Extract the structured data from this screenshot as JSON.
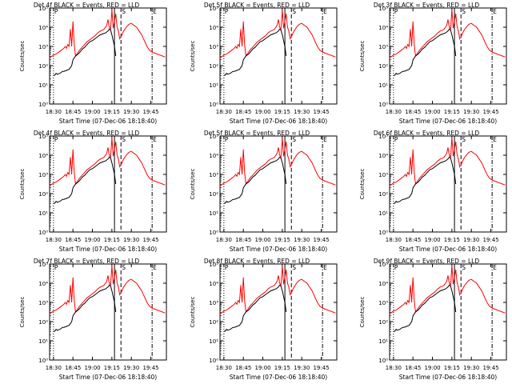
{
  "colors": {
    "background": "#ffffff",
    "axis": "#000000",
    "events": "#000000",
    "lld": "#ff0000"
  },
  "chart_data": [
    {
      "type": "line",
      "detector": "4",
      "title": "Det 4f BLACK = Events, RED = LLD",
      "ylabel": "Counts/sec",
      "xlabel": "Start Time (07-Dec-06 18:18:40)"
    },
    {
      "type": "line",
      "detector": "5",
      "title": "Det 5f BLACK = Events, RED = LLD",
      "ylabel": "Counts/sec",
      "xlabel": "Start Time (07-Dec-06 18:18:40)"
    },
    {
      "type": "line",
      "detector": "3",
      "title": "Det 3f BLACK = Events, RED = LLD",
      "ylabel": "Counts/sec",
      "xlabel": "Start Time (07-Dec-06 18:18:40)"
    },
    {
      "type": "line",
      "detector": "4",
      "title": "Det 4f BLACK = Events, RED = LLD",
      "ylabel": "Counts/sec",
      "xlabel": "Start Time (07-Dec-06 18:18:40)"
    },
    {
      "type": "line",
      "detector": "5",
      "title": "Det 5f BLACK = Events, RED = LLD",
      "ylabel": "Counts/sec",
      "xlabel": "Start Time (07-Dec-06 18:18:40)"
    },
    {
      "type": "line",
      "detector": "6",
      "title": "Det 6f BLACK = Events, RED = LLD",
      "ylabel": "Counts/sec",
      "xlabel": "Start Time (07-Dec-06 18:18:40)"
    },
    {
      "type": "line",
      "detector": "7",
      "title": "Det 7f BLACK = Events, RED = LLD",
      "ylabel": "Counts/sec",
      "xlabel": "Start Time (07-Dec-06 18:18:40)"
    },
    {
      "type": "line",
      "detector": "8",
      "title": "Det 8f BLACK = Events, RED = LLD",
      "ylabel": "Counts/sec",
      "xlabel": "Start Time (07-Dec-06 18:18:40)"
    },
    {
      "type": "line",
      "detector": "9",
      "title": "Det 9f BLACK = Events, RED = LLD",
      "ylabel": "Counts/sec",
      "xlabel": "Start Time (07-Dec-06 18:18:40)"
    }
  ],
  "shared": {
    "xlim_minutes": [
      1107,
      1197
    ],
    "x_ticks": [
      {
        "value": 1110,
        "label": "18:30"
      },
      {
        "value": 1125,
        "label": "18:45"
      },
      {
        "value": 1140,
        "label": "19:00"
      },
      {
        "value": 1155,
        "label": "19:15"
      },
      {
        "value": 1170,
        "label": "19:30"
      },
      {
        "value": 1185,
        "label": "19:45"
      }
    ],
    "ylim_log10": [
      0,
      5
    ],
    "y_ticks": [
      {
        "exp": 0,
        "label": "10⁰"
      },
      {
        "exp": 1,
        "label": "10¹"
      },
      {
        "exp": 2,
        "label": "10²"
      },
      {
        "exp": 3,
        "label": "10³"
      },
      {
        "exp": 4,
        "label": "10⁴"
      },
      {
        "exp": 5,
        "label": "10⁵"
      }
    ],
    "markers": [
      {
        "label": "P",
        "x": 1110,
        "style": "dotted"
      },
      {
        "label": "",
        "x": 1157,
        "style": "solid"
      },
      {
        "label": "S",
        "x": 1162,
        "style": "dashed"
      },
      {
        "label": "E",
        "x": 1186,
        "style": "dashdot"
      }
    ],
    "events_series": {
      "name": "Events",
      "x": [
        1110,
        1111,
        1112,
        1113,
        1115,
        1116,
        1117,
        1118,
        1120,
        1122,
        1124,
        1125,
        1127,
        1129,
        1131,
        1132,
        1134,
        1136,
        1138,
        1140,
        1142,
        1144,
        1146,
        1148,
        1150,
        1151,
        1152,
        1153,
        1154,
        1155,
        1156,
        1157,
        1158
      ],
      "log10": [
        1.5,
        1.5,
        1.6,
        1.55,
        1.6,
        1.65,
        1.7,
        1.7,
        1.75,
        1.8,
        2.0,
        2.3,
        2.5,
        2.6,
        2.75,
        2.85,
        2.95,
        3.1,
        3.25,
        3.3,
        3.4,
        3.5,
        3.6,
        3.65,
        3.7,
        3.75,
        3.8,
        3.9,
        3.85,
        3.6,
        3.3,
        3.0,
        2.5
      ]
    },
    "lld_series": {
      "name": "LLD",
      "x": [
        1107,
        1108,
        1110,
        1112,
        1114,
        1116,
        1117,
        1118,
        1119,
        1120,
        1121,
        1122,
        1123,
        1124,
        1125,
        1126,
        1127,
        1128,
        1130,
        1132,
        1134,
        1136,
        1138,
        1140,
        1142,
        1144,
        1146,
        1148,
        1149,
        1150,
        1151,
        1152,
        1153,
        1154,
        1155,
        1156,
        1157,
        1158,
        1159,
        1160,
        1161,
        1162,
        1164,
        1166,
        1168,
        1170,
        1172,
        1174,
        1176,
        1178,
        1180,
        1182,
        1184,
        1186,
        1188,
        1190,
        1192,
        1194,
        1196
      ],
      "log10": [
        2.4,
        2.45,
        2.55,
        2.6,
        2.7,
        2.8,
        2.85,
        2.9,
        3.0,
        2.9,
        3.1,
        3.0,
        3.9,
        3.0,
        4.3,
        3.1,
        2.5,
        2.6,
        2.8,
        2.95,
        3.1,
        3.25,
        3.35,
        3.45,
        3.55,
        3.7,
        3.8,
        3.85,
        3.9,
        4.0,
        4.1,
        4.4,
        4.0,
        3.9,
        4.9,
        3.95,
        4.3,
        4.7,
        4.0,
        3.8,
        3.4,
        3.5,
        3.8,
        4.0,
        4.15,
        4.2,
        4.1,
        4.0,
        3.8,
        3.6,
        3.3,
        3.0,
        2.8,
        2.7,
        2.65,
        2.6,
        2.55,
        2.5,
        2.45
      ]
    }
  }
}
